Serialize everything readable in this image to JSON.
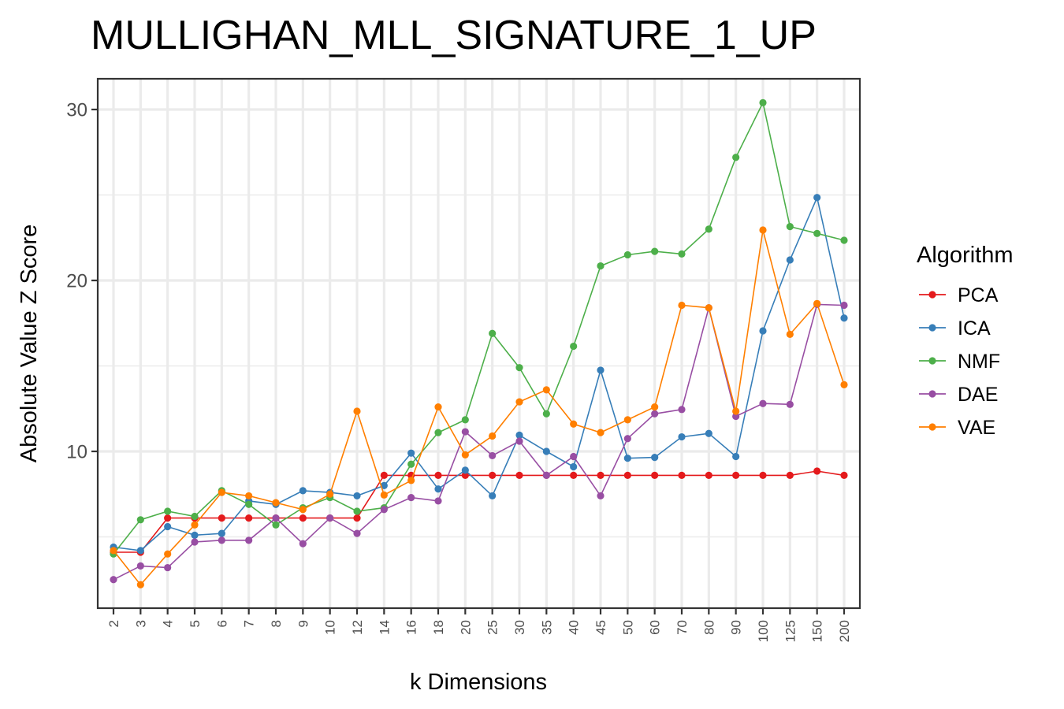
{
  "chart_data": {
    "type": "line",
    "title": "MULLIGHAN_MLL_SIGNATURE_1_UP",
    "xlabel": "k Dimensions",
    "ylabel": "Absolute Value Z Score",
    "categories": [
      "2",
      "3",
      "4",
      "5",
      "6",
      "7",
      "8",
      "9",
      "10",
      "12",
      "14",
      "16",
      "18",
      "20",
      "25",
      "30",
      "35",
      "40",
      "45",
      "50",
      "60",
      "70",
      "80",
      "90",
      "100",
      "125",
      "150",
      "200"
    ],
    "yticks": [
      10,
      20,
      30
    ],
    "ylim": [
      1,
      32
    ],
    "grid": true,
    "legend": {
      "title": "Algorithm",
      "placement": "right"
    },
    "series": [
      {
        "name": "PCA",
        "color": "#e41a1c",
        "values": [
          4.1,
          4.1,
          6.1,
          6.1,
          6.1,
          6.1,
          6.1,
          6.1,
          6.1,
          6.1,
          8.6,
          8.6,
          8.6,
          8.6,
          8.6,
          8.6,
          8.6,
          8.6,
          8.6,
          8.6,
          8.6,
          8.6,
          8.6,
          8.6,
          8.6,
          8.6,
          8.85,
          8.6
        ]
      },
      {
        "name": "ICA",
        "color": "#377eb8",
        "values": [
          4.4,
          4.2,
          5.6,
          5.1,
          5.2,
          7.1,
          6.9,
          7.7,
          7.6,
          7.4,
          8.0,
          9.9,
          7.8,
          8.9,
          7.4,
          10.95,
          10.0,
          9.1,
          14.75,
          9.6,
          9.65,
          10.85,
          11.05,
          9.7,
          17.05,
          21.2,
          24.85,
          17.8
        ]
      },
      {
        "name": "NMF",
        "color": "#4daf4a",
        "values": [
          4.0,
          6.0,
          6.5,
          6.2,
          7.7,
          6.9,
          5.7,
          6.7,
          7.3,
          6.5,
          6.7,
          9.25,
          11.1,
          11.85,
          16.9,
          14.9,
          12.2,
          16.15,
          20.85,
          21.5,
          21.7,
          21.55,
          23.0,
          27.2,
          30.4,
          23.15,
          22.75,
          22.35
        ]
      },
      {
        "name": "DAE",
        "color": "#984ea3",
        "values": [
          2.5,
          3.3,
          3.2,
          4.7,
          4.8,
          4.8,
          6.1,
          4.6,
          6.1,
          5.2,
          6.6,
          7.3,
          7.1,
          11.15,
          9.75,
          10.6,
          8.6,
          9.7,
          7.4,
          10.75,
          12.2,
          12.45,
          18.4,
          12.05,
          12.8,
          12.75,
          18.6,
          18.55
        ]
      },
      {
        "name": "VAE",
        "color": "#ff7f00",
        "values": [
          4.2,
          2.2,
          4.0,
          5.7,
          7.6,
          7.4,
          7.0,
          6.6,
          7.5,
          12.35,
          7.45,
          8.3,
          12.6,
          9.8,
          10.9,
          12.9,
          13.6,
          11.6,
          11.1,
          11.85,
          12.6,
          18.55,
          18.4,
          12.35,
          22.95,
          16.85,
          18.65,
          13.9
        ]
      }
    ]
  }
}
